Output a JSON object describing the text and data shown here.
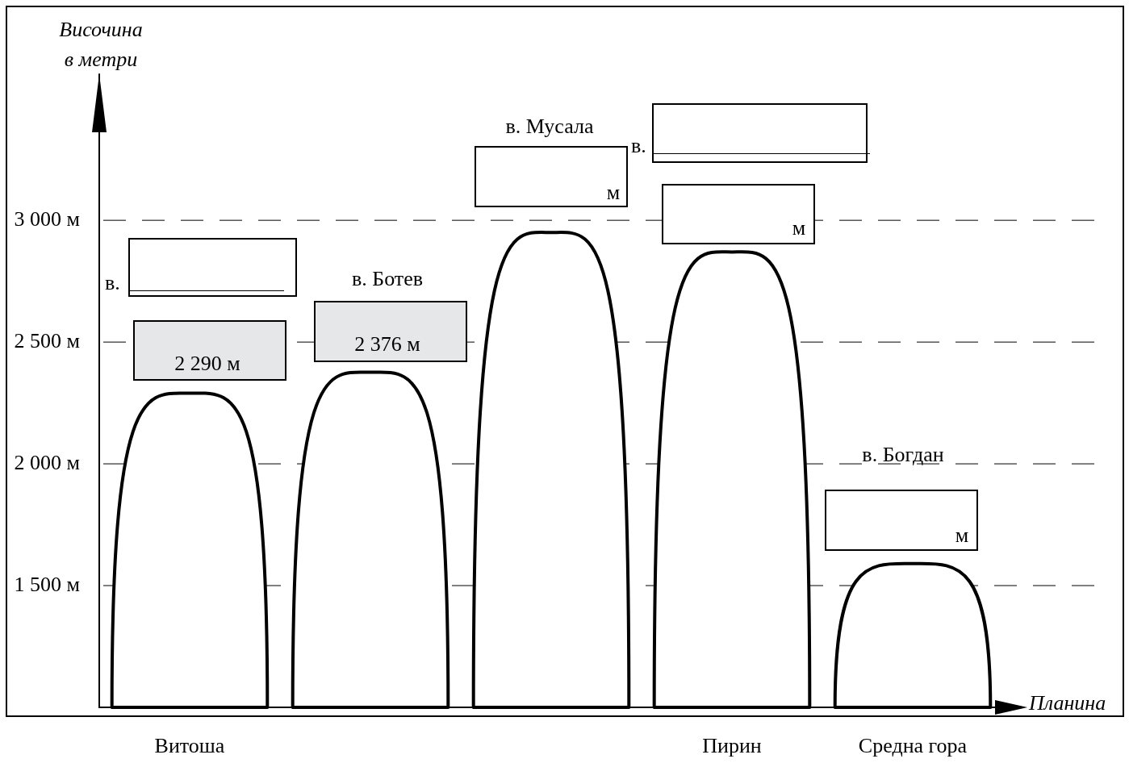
{
  "chart_data": {
    "type": "bar",
    "xlabel": "Планина",
    "ylabel": "Височина в метри",
    "categories": [
      "Витоша",
      null,
      null,
      "Пирин",
      "Средна гора"
    ],
    "values": [
      2290,
      2376,
      2950,
      2870,
      1590
    ],
    "value_labels": [
      "2 290 м",
      "2 376 м",
      null,
      null,
      null
    ],
    "color": "#ffffff",
    "ylim": [
      1000,
      3600
    ],
    "yticks": [
      {
        "value": 1500,
        "label": "1 500 м"
      },
      {
        "value": 2000,
        "label": "2 000 м"
      },
      {
        "value": 2500,
        "label": "2 500 м"
      },
      {
        "value": 3000,
        "label": "3 000 м"
      }
    ],
    "grid": "y",
    "line_style": "dashed",
    "annotations": [
      "в.",
      "в. Ботев",
      "в. Мусала",
      "м",
      "в.",
      "м",
      "в. Богдан",
      "м"
    ]
  }
}
